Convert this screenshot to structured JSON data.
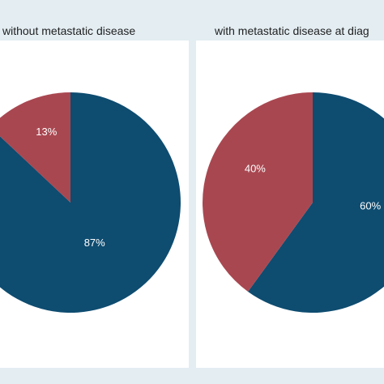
{
  "colors": {
    "primary": "#0e4c70",
    "secondary": "#a94750",
    "background": "#e3edf2"
  },
  "chart_data": [
    {
      "type": "pie",
      "title": "without metastatic disease",
      "categories": [
        "",
        ""
      ],
      "values": [
        87,
        13
      ],
      "labels": [
        "87%",
        "13%"
      ],
      "colors": [
        "#0e4c70",
        "#a94750"
      ]
    },
    {
      "type": "pie",
      "title": "with metastatic disease at diag",
      "categories": [
        "",
        ""
      ],
      "values": [
        60,
        40
      ],
      "labels": [
        "60%",
        "40%"
      ],
      "colors": [
        "#0e4c70",
        "#a94750"
      ]
    }
  ]
}
